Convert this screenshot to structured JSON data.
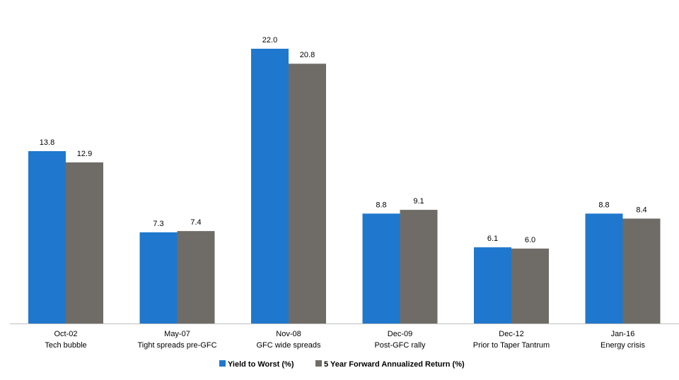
{
  "chart_data": {
    "type": "bar",
    "categories": [
      {
        "date": "Oct-02",
        "event": "Tech bubble"
      },
      {
        "date": "May-07",
        "event": "Tight spreads pre-GFC"
      },
      {
        "date": "Nov-08",
        "event": "GFC wide spreads"
      },
      {
        "date": "Dec-09",
        "event": "Post-GFC rally"
      },
      {
        "date": "Dec-12",
        "event": "Prior to Taper Tantrum"
      },
      {
        "date": "Jan-16",
        "event": "Energy crisis"
      }
    ],
    "series": [
      {
        "name": "Yield to Worst (%)",
        "color": "#1f78cd",
        "values": [
          13.8,
          7.3,
          22.0,
          8.8,
          6.1,
          8.8
        ]
      },
      {
        "name": "5 Year Forward Annualized Return (%)",
        "color": "#6f6c67",
        "values": [
          12.9,
          7.4,
          20.8,
          9.1,
          6.0,
          8.4
        ]
      }
    ],
    "ylim": [
      0,
      22
    ],
    "legend_position": "bottom",
    "grid": false,
    "axis_color": "#bfbfbf"
  }
}
